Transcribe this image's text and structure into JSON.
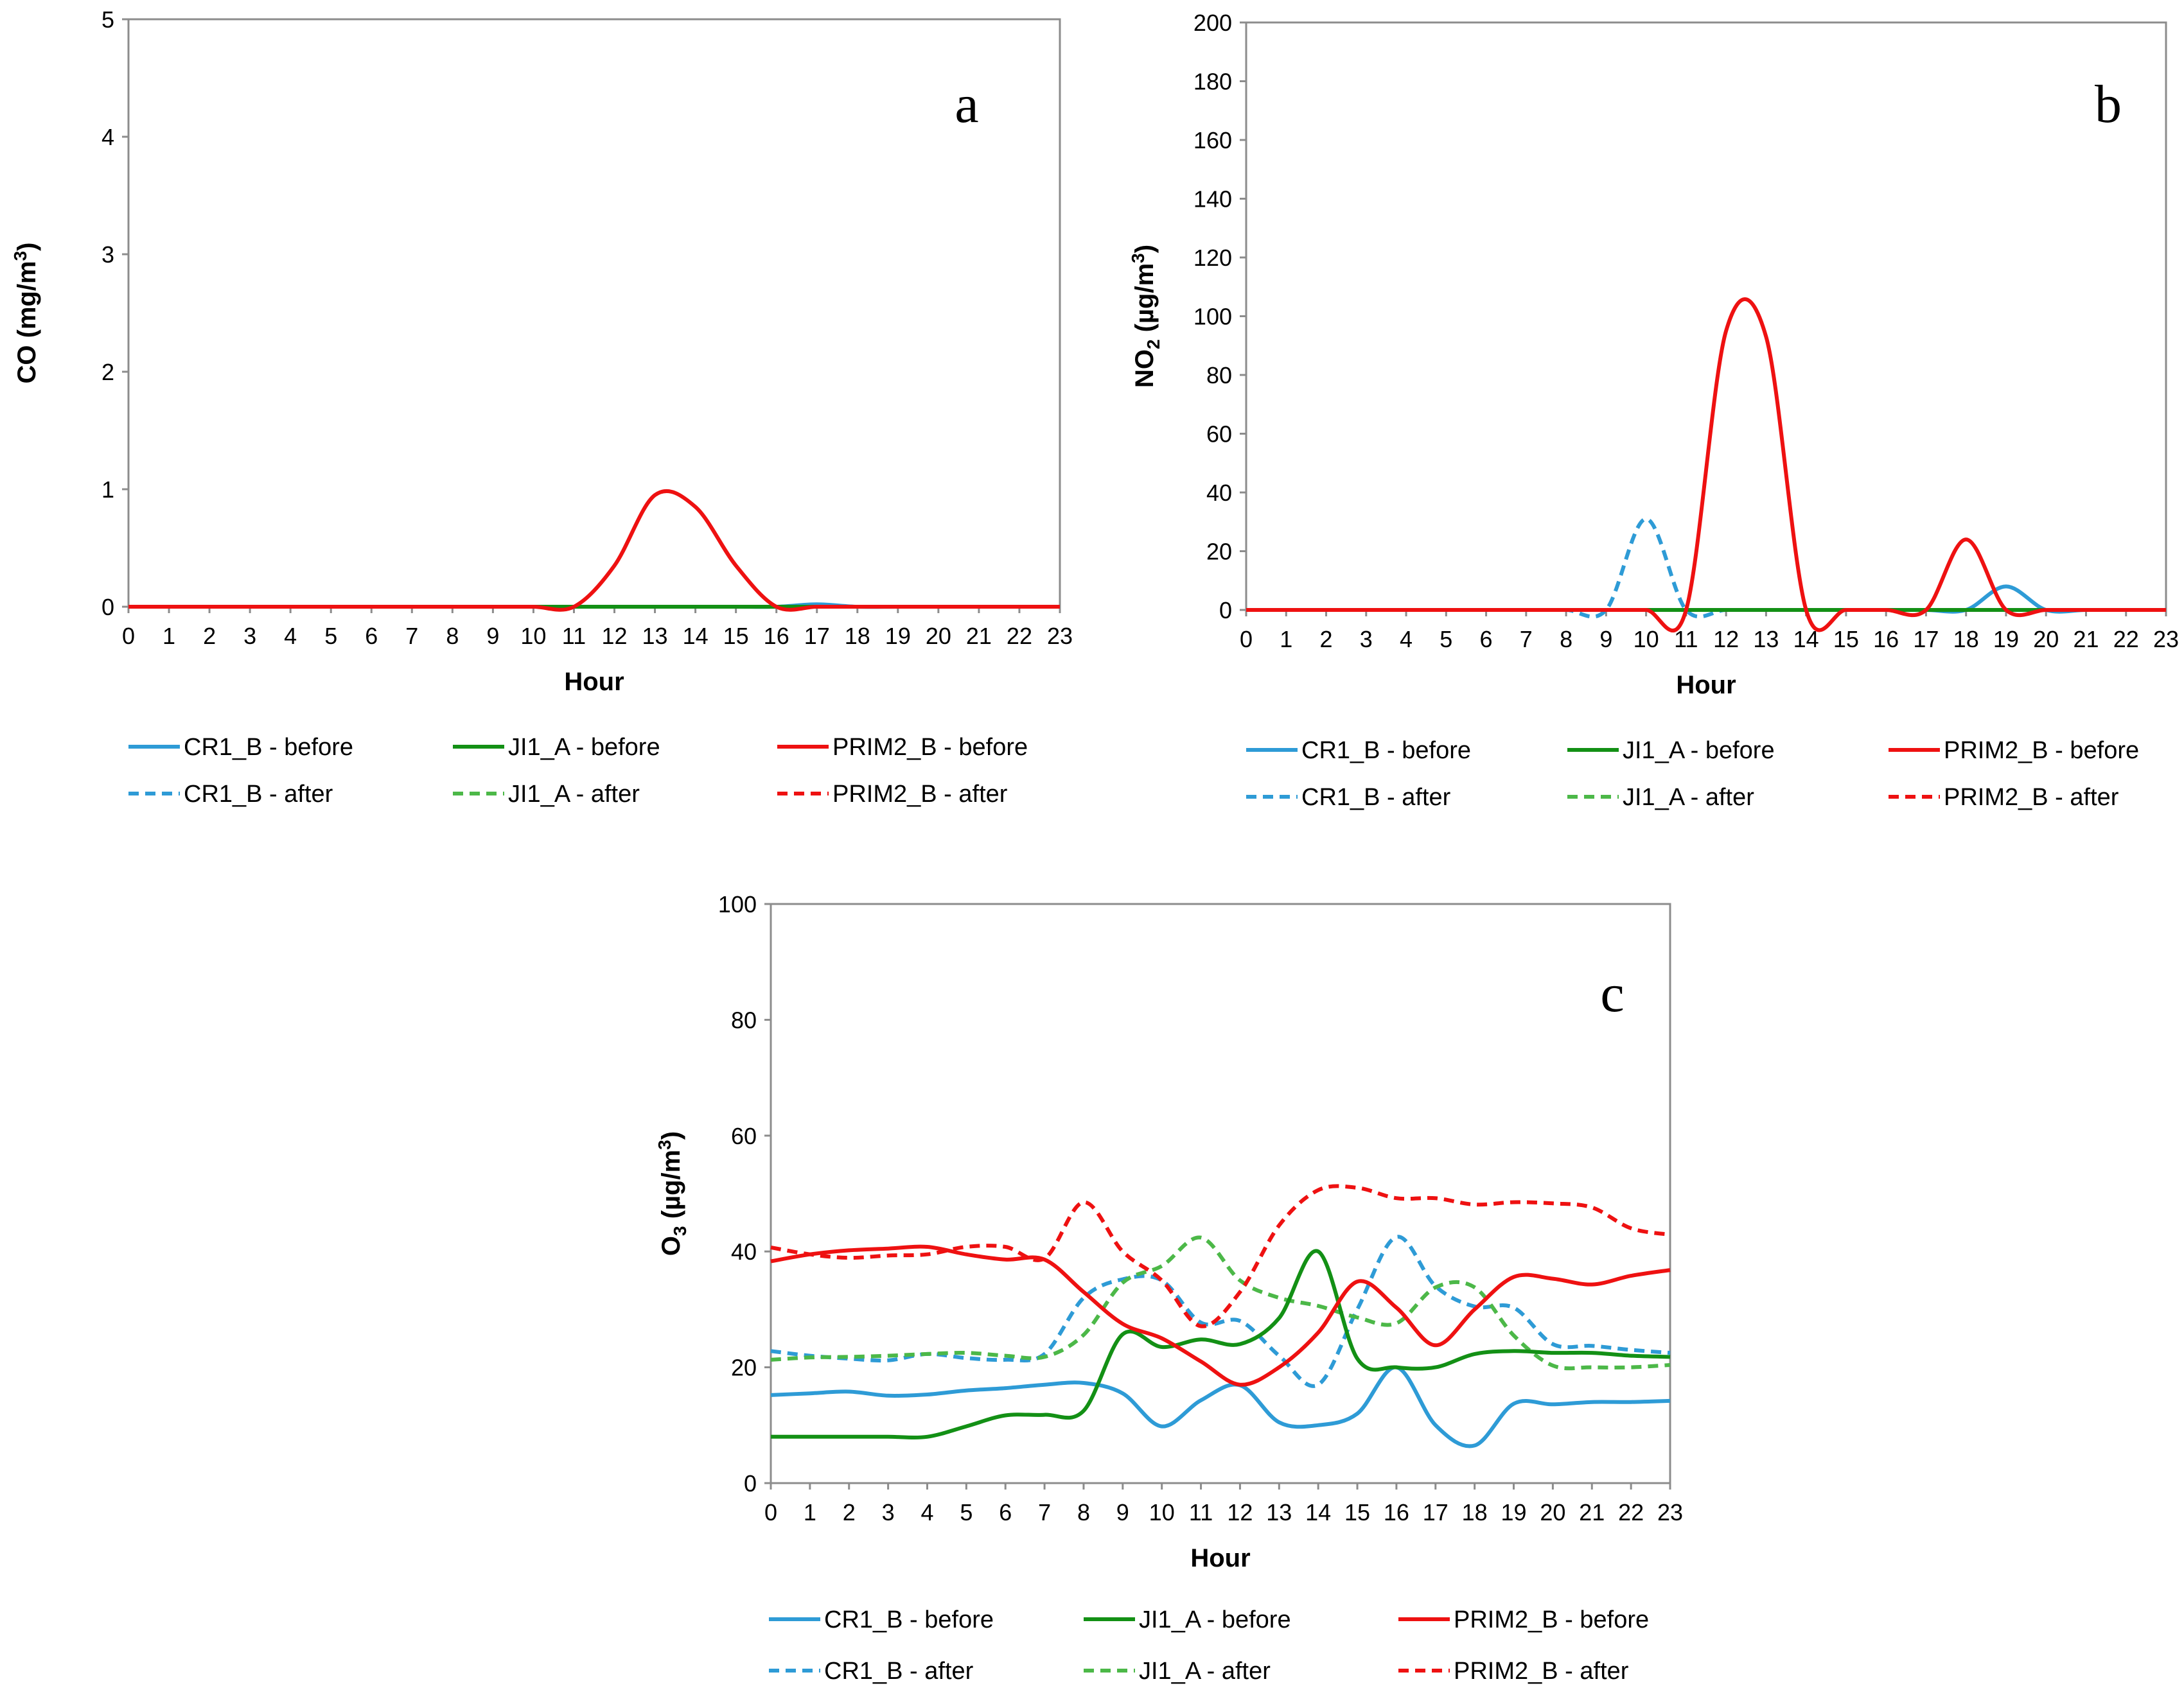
{
  "figure": {
    "series_styles": [
      {
        "name": "CR1_B - before",
        "color": "#2e9bd6",
        "dash": false
      },
      {
        "name": "JI1_A - before",
        "color": "#139015",
        "dash": false
      },
      {
        "name": "PRIM2_B - before",
        "color": "#ee1111",
        "dash": false
      },
      {
        "name": "CR1_B - after",
        "color": "#2e9bd6",
        "dash": true
      },
      {
        "name": "JI1_A - after",
        "color": "#4cb848",
        "dash": true
      },
      {
        "name": "PRIM2_B - after",
        "color": "#ee1111",
        "dash": true
      }
    ]
  },
  "chart_data": [
    {
      "id": "a",
      "type": "line",
      "panel_label": "a",
      "xlabel": "Hour",
      "ylabel": "CO (mg/m3)",
      "ylabel_parts": {
        "main": "CO (mg/m",
        "sup": "3",
        "tail": ")"
      },
      "x": [
        0,
        1,
        2,
        3,
        4,
        5,
        6,
        7,
        8,
        9,
        10,
        11,
        12,
        13,
        14,
        15,
        16,
        17,
        18,
        19,
        20,
        21,
        22,
        23
      ],
      "xlim": [
        0,
        23
      ],
      "ylim": [
        0,
        5
      ],
      "yticks": [
        0,
        1,
        2,
        3,
        4,
        5
      ],
      "grid": false,
      "legend_position": "bottom",
      "series": [
        {
          "name": "CR1_B - before",
          "values": [
            0,
            0,
            0,
            0,
            0,
            0,
            0,
            0,
            0,
            0,
            0,
            0,
            0,
            0,
            0,
            0,
            0,
            0.02,
            0,
            0,
            0,
            0,
            0,
            0
          ]
        },
        {
          "name": "JI1_A - before",
          "values": [
            0,
            0,
            0,
            0,
            0,
            0,
            0,
            0,
            0,
            0,
            0,
            0,
            0,
            0,
            0,
            0,
            0,
            0,
            0,
            0,
            0,
            0,
            0,
            0
          ]
        },
        {
          "name": "PRIM2_B - before",
          "values": [
            0,
            0,
            0,
            0,
            0,
            0,
            0,
            0,
            0,
            0,
            0,
            0,
            0.35,
            0.95,
            0.85,
            0.35,
            0,
            0,
            0,
            0,
            0,
            0,
            0,
            0
          ]
        },
        {
          "name": "CR1_B - after",
          "values": [
            0,
            0,
            0,
            0,
            0,
            0,
            0,
            0,
            0,
            0,
            0,
            0,
            0,
            0,
            0,
            0,
            0,
            0,
            0,
            0,
            0,
            0,
            0,
            0
          ]
        },
        {
          "name": "JI1_A - after",
          "values": [
            0,
            0,
            0,
            0,
            0,
            0,
            0,
            0,
            0,
            0,
            0,
            0,
            0,
            0,
            0,
            0,
            0,
            0,
            0,
            0,
            0,
            0,
            0,
            0
          ]
        },
        {
          "name": "PRIM2_B - after",
          "values": [
            0,
            0,
            0,
            0,
            0,
            0,
            0,
            0,
            0,
            0,
            0,
            0,
            0,
            0,
            0,
            0,
            0,
            0,
            0,
            0,
            0,
            0,
            0,
            0
          ]
        }
      ]
    },
    {
      "id": "b",
      "type": "line",
      "panel_label": "b",
      "xlabel": "Hour",
      "ylabel": "NO2 (µg/m3)",
      "ylabel_parts": {
        "pre": "NO",
        "sub": "2",
        "main": " (µg/m",
        "sup": "3",
        "tail": ")"
      },
      "x": [
        0,
        1,
        2,
        3,
        4,
        5,
        6,
        7,
        8,
        9,
        10,
        11,
        12,
        13,
        14,
        15,
        16,
        17,
        18,
        19,
        20,
        21,
        22,
        23
      ],
      "xlim": [
        0,
        23
      ],
      "ylim": [
        0,
        200
      ],
      "yticks": [
        0,
        20,
        40,
        60,
        80,
        100,
        120,
        140,
        160,
        180,
        200
      ],
      "grid": false,
      "legend_position": "bottom",
      "series": [
        {
          "name": "CR1_B - before",
          "values": [
            0,
            0,
            0,
            0,
            0,
            0,
            0,
            0,
            0,
            0,
            0,
            0,
            0,
            0,
            0,
            0,
            0,
            0,
            0,
            8,
            0,
            0,
            0,
            0
          ]
        },
        {
          "name": "JI1_A - before",
          "values": [
            0,
            0,
            0,
            0,
            0,
            0,
            0,
            0,
            0,
            0,
            0,
            0,
            0,
            0,
            0,
            0,
            0,
            0,
            0,
            0,
            0,
            0,
            0,
            0
          ]
        },
        {
          "name": "PRIM2_B - before",
          "values": [
            0,
            0,
            0,
            0,
            0,
            0,
            0,
            0,
            0,
            0,
            0,
            0,
            95,
            93,
            0,
            0,
            0,
            0,
            24,
            0,
            0,
            0,
            0,
            0
          ]
        },
        {
          "name": "CR1_B - after",
          "values": [
            0,
            0,
            0,
            0,
            0,
            0,
            0,
            0,
            0,
            0,
            31,
            0,
            0,
            0,
            0,
            0,
            0,
            0,
            0,
            0,
            0,
            0,
            0,
            0
          ]
        },
        {
          "name": "JI1_A - after",
          "values": [
            0,
            0,
            0,
            0,
            0,
            0,
            0,
            0,
            0,
            0,
            0,
            0,
            0,
            0,
            0,
            0,
            0,
            0,
            0,
            0,
            0,
            0,
            0,
            0
          ]
        },
        {
          "name": "PRIM2_B - after",
          "values": [
            0,
            0,
            0,
            0,
            0,
            0,
            0,
            0,
            0,
            0,
            0,
            0,
            0,
            0,
            0,
            0,
            0,
            0,
            0,
            0,
            0,
            0,
            0,
            0
          ]
        }
      ]
    },
    {
      "id": "c",
      "type": "line",
      "panel_label": "c",
      "xlabel": "Hour",
      "ylabel": "O3 (µg/m3)",
      "ylabel_parts": {
        "pre": "O",
        "sub": "3",
        "main": " (µg/m",
        "sup": "3",
        "tail": ")"
      },
      "x": [
        0,
        1,
        2,
        3,
        4,
        5,
        6,
        7,
        8,
        9,
        10,
        11,
        12,
        13,
        14,
        15,
        16,
        17,
        18,
        19,
        20,
        21,
        22,
        23
      ],
      "xlim": [
        0,
        23
      ],
      "ylim": [
        0,
        100
      ],
      "yticks": [
        0,
        20,
        40,
        60,
        80,
        100
      ],
      "grid": false,
      "legend_position": "bottom",
      "series": [
        {
          "name": "CR1_B - before",
          "values": [
            15.2,
            15.5,
            15.8,
            15.1,
            15.3,
            16,
            16.4,
            17,
            17.3,
            15.5,
            9.8,
            14.3,
            16.9,
            10.5,
            10,
            12,
            20,
            10,
            6.5,
            13.7,
            13.6,
            14,
            14,
            14.2
          ]
        },
        {
          "name": "JI1_A - before",
          "values": [
            8,
            8,
            8,
            8,
            8,
            9.8,
            11.7,
            11.8,
            12.5,
            25.7,
            23.5,
            24.8,
            24,
            28.5,
            40,
            21.5,
            20,
            20,
            22.3,
            22.8,
            22.5,
            22.5,
            22,
            21.8
          ]
        },
        {
          "name": "PRIM2_B - before",
          "values": [
            38.3,
            39.5,
            40.2,
            40.5,
            40.8,
            39.5,
            38.6,
            38.6,
            33,
            27.5,
            25,
            21,
            17,
            20,
            26,
            34.8,
            30.3,
            23.8,
            30,
            35.6,
            35.3,
            34.3,
            35.8,
            36.8
          ]
        },
        {
          "name": "CR1_B - after",
          "values": [
            22.8,
            22,
            21.5,
            21.2,
            22.3,
            21.6,
            21.3,
            22.3,
            32,
            35.2,
            35,
            27.7,
            28,
            22,
            17,
            30,
            42.5,
            34,
            30.5,
            30.3,
            24,
            23.7,
            23,
            22.5
          ]
        },
        {
          "name": "JI1_A - after",
          "values": [
            21.3,
            21.7,
            21.8,
            22,
            22.3,
            22.5,
            22,
            21.8,
            25.6,
            34.6,
            37.5,
            42.4,
            35,
            32,
            30.6,
            28.6,
            27.6,
            33.8,
            33.8,
            25.5,
            20.3,
            20,
            20,
            20.4
          ]
        },
        {
          "name": "PRIM2_B - after",
          "values": [
            40.7,
            39.5,
            38.9,
            39.3,
            39.5,
            40.8,
            40.8,
            38.8,
            48.5,
            40,
            35,
            27.1,
            33,
            44.5,
            50.6,
            51,
            49.2,
            49.2,
            48.1,
            48.5,
            48.3,
            47.6,
            44,
            42.9
          ]
        }
      ]
    }
  ]
}
